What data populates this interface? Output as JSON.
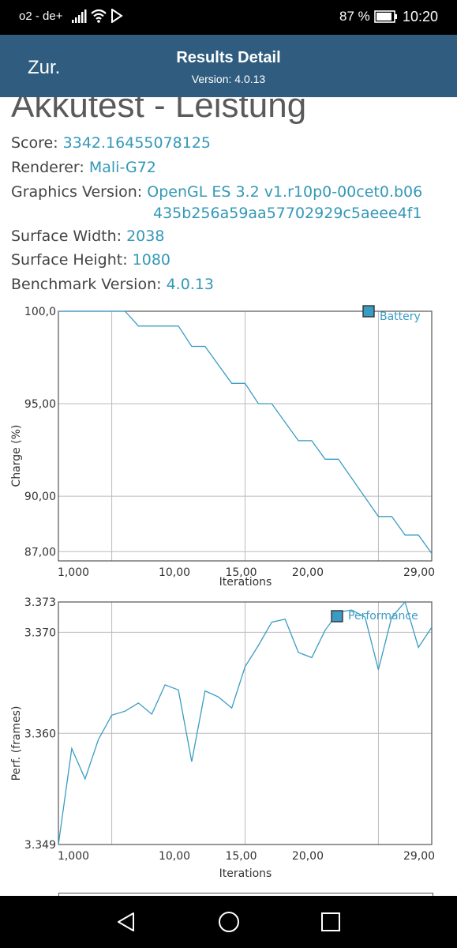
{
  "status_bar": {
    "carrier": "o2 - de+",
    "battery_percent": "87 %",
    "time": "10:20"
  },
  "header": {
    "back_label": "Zur.",
    "title": "Results Detail",
    "subtitle": "Version: 4.0.13"
  },
  "page_title": "Akkutest - Leistung",
  "details": {
    "score_label": "Score: ",
    "score_value": "3342.16455078125",
    "renderer_label": "Renderer: ",
    "renderer_value": "Mali-G72",
    "graphics_label": "Graphics Version: ",
    "graphics_value_line1": "OpenGL ES 3.2 v1.r10p0-00cet0.b06",
    "graphics_value_line2": "435b256a59aa57702929c5aeee4f1",
    "width_label": "Surface Width: ",
    "width_value": "2038",
    "height_label": "Surface Height: ",
    "height_value": "1080",
    "bench_label": "Benchmark Version: ",
    "bench_value": "4.0.13"
  },
  "colors": {
    "accent": "#3498b7",
    "header_bg": "#305d7f",
    "line": "#3a9cc4",
    "grid": "#bbbbbb"
  },
  "chart_data": [
    {
      "type": "line",
      "xlabel": "Iterations",
      "ylabel": "Charge (%)",
      "xlim": [
        1,
        29
      ],
      "ylim": [
        86.5,
        100
      ],
      "x_ticks": [
        "1,000",
        "10,00",
        "15,00",
        "20,00",
        "29,00"
      ],
      "y_ticks": [
        "100,0",
        "95,00",
        "90,00",
        "87,00"
      ],
      "y_tick_values": [
        100,
        95,
        90,
        87
      ],
      "series": [
        {
          "name": "Battery",
          "x": [
            1,
            6,
            7,
            10,
            11,
            12,
            14,
            15,
            16,
            17,
            19,
            20,
            21,
            22,
            25,
            26,
            27,
            28,
            29
          ],
          "y": [
            100,
            100,
            99.2,
            99.2,
            98.1,
            98.1,
            96.1,
            96.1,
            95.0,
            95.0,
            93.0,
            93.0,
            92.0,
            92.0,
            88.9,
            88.9,
            87.9,
            87.9,
            86.9
          ]
        }
      ]
    },
    {
      "type": "line",
      "xlabel": "Iterations",
      "ylabel": "Perf. (frames)",
      "xlim": [
        1,
        29
      ],
      "ylim": [
        3.349,
        3.373
      ],
      "x_ticks": [
        "1,000",
        "10,00",
        "15,00",
        "20,00",
        "29,00"
      ],
      "y_ticks": [
        "3.373",
        "3.370",
        "3.360",
        "3.349"
      ],
      "y_tick_values": [
        3.373,
        3.37,
        3.36,
        3.349
      ],
      "series": [
        {
          "name": "Performance",
          "x": [
            1,
            2,
            3,
            4,
            5,
            6,
            7,
            8,
            9,
            10,
            11,
            12,
            13,
            14,
            15,
            16,
            17,
            18,
            19,
            20,
            21,
            22,
            23,
            24,
            25,
            26,
            27,
            28,
            29
          ],
          "y": [
            3.349,
            3.3585,
            3.3555,
            3.3594,
            3.3618,
            3.3622,
            3.363,
            3.3619,
            3.3648,
            3.3643,
            3.3572,
            3.3642,
            3.3636,
            3.3625,
            3.3666,
            3.3687,
            3.371,
            3.3713,
            3.368,
            3.3675,
            3.3702,
            3.372,
            3.3722,
            3.3715,
            3.3663,
            3.3715,
            3.373,
            3.3685,
            3.3705
          ]
        }
      ]
    }
  ]
}
